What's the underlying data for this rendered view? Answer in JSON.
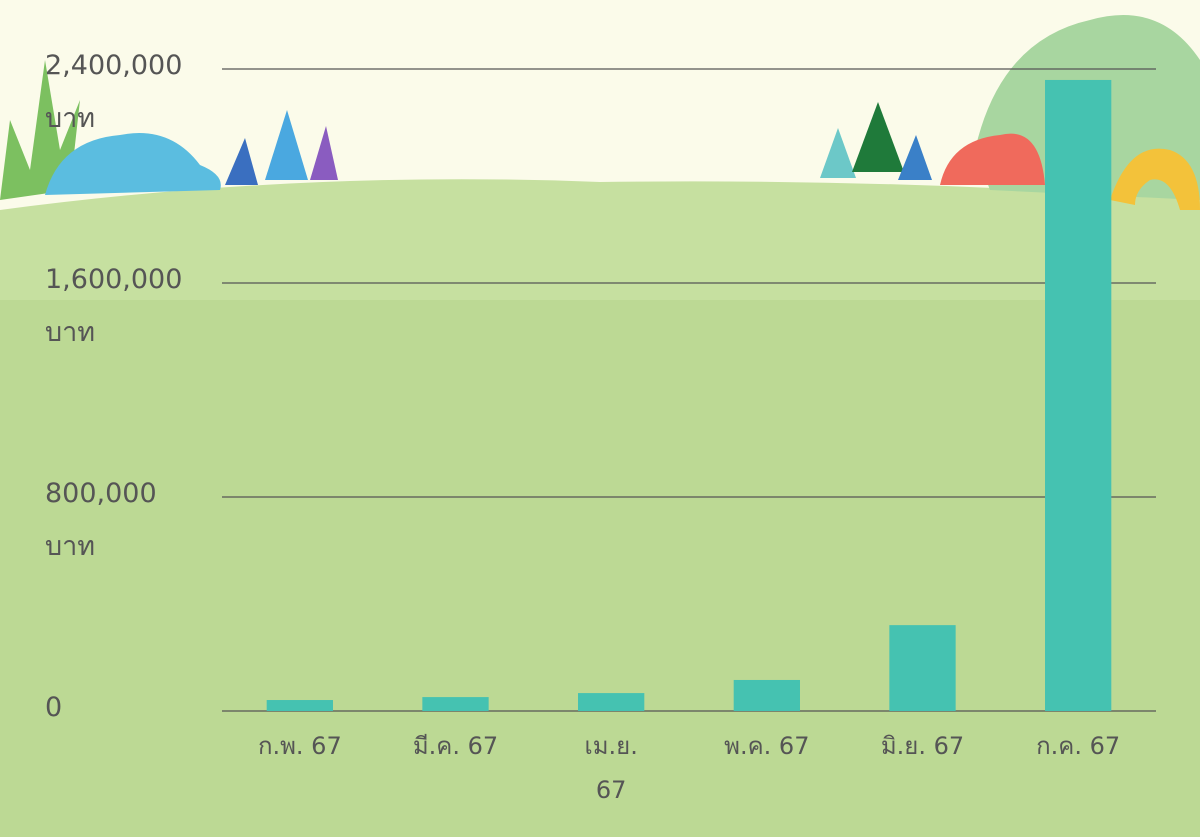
{
  "chart_data": {
    "type": "bar",
    "categories": [
      "ก.พ. 67",
      "มี.ค. 67",
      "เม.ย. 67",
      "พ.ค. 67",
      "มิ.ย. 67",
      "ก.ค. 67"
    ],
    "values": [
      41000,
      52000,
      67000,
      116000,
      321000,
      2359000
    ],
    "color": "#45c2b1",
    "ylim": [
      0,
      2400000
    ],
    "yticks": [
      0,
      {
        "value": 800000,
        "label": "800,000 บาท"
      },
      {
        "value": 1600000,
        "label": "1,600,000 บาท"
      },
      {
        "value": 2400000,
        "label": "2,400,000 บาท"
      }
    ],
    "grid": true
  }
}
